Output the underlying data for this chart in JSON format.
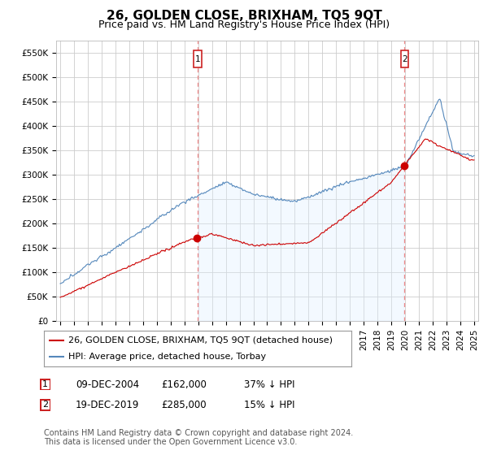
{
  "title": "26, GOLDEN CLOSE, BRIXHAM, TQ5 9QT",
  "subtitle": "Price paid vs. HM Land Registry's House Price Index (HPI)",
  "ylim": [
    0,
    575000
  ],
  "yticks": [
    0,
    50000,
    100000,
    150000,
    200000,
    250000,
    300000,
    350000,
    400000,
    450000,
    500000,
    550000
  ],
  "ytick_labels": [
    "£0",
    "£50K",
    "£100K",
    "£150K",
    "£200K",
    "£250K",
    "£300K",
    "£350K",
    "£400K",
    "£450K",
    "£500K",
    "£550K"
  ],
  "x_start_year": 1995,
  "x_end_year": 2025,
  "transaction1_date": 2004.96,
  "transaction1_price": 162000,
  "transaction1_label": "09-DEC-2004",
  "transaction1_hpi": "37% ↓ HPI",
  "transaction2_date": 2019.96,
  "transaction2_price": 285000,
  "transaction2_label": "19-DEC-2019",
  "transaction2_hpi": "15% ↓ HPI",
  "line_color_red": "#cc0000",
  "line_color_blue": "#5588bb",
  "fill_color_blue": "#ddeeff",
  "vline_color": "#ee8888",
  "marker_box_color": "#cc2222",
  "dot_color": "#cc0000",
  "grid_color": "#cccccc",
  "background_color": "#ffffff",
  "legend_label_red": "26, GOLDEN CLOSE, BRIXHAM, TQ5 9QT (detached house)",
  "legend_label_blue": "HPI: Average price, detached house, Torbay",
  "footer_text": "Contains HM Land Registry data © Crown copyright and database right 2024.\nThis data is licensed under the Open Government Licence v3.0.",
  "title_fontsize": 11,
  "subtitle_fontsize": 9,
  "tick_fontsize": 7.5,
  "legend_fontsize": 8,
  "footer_fontsize": 7,
  "table_fontsize": 8.5
}
